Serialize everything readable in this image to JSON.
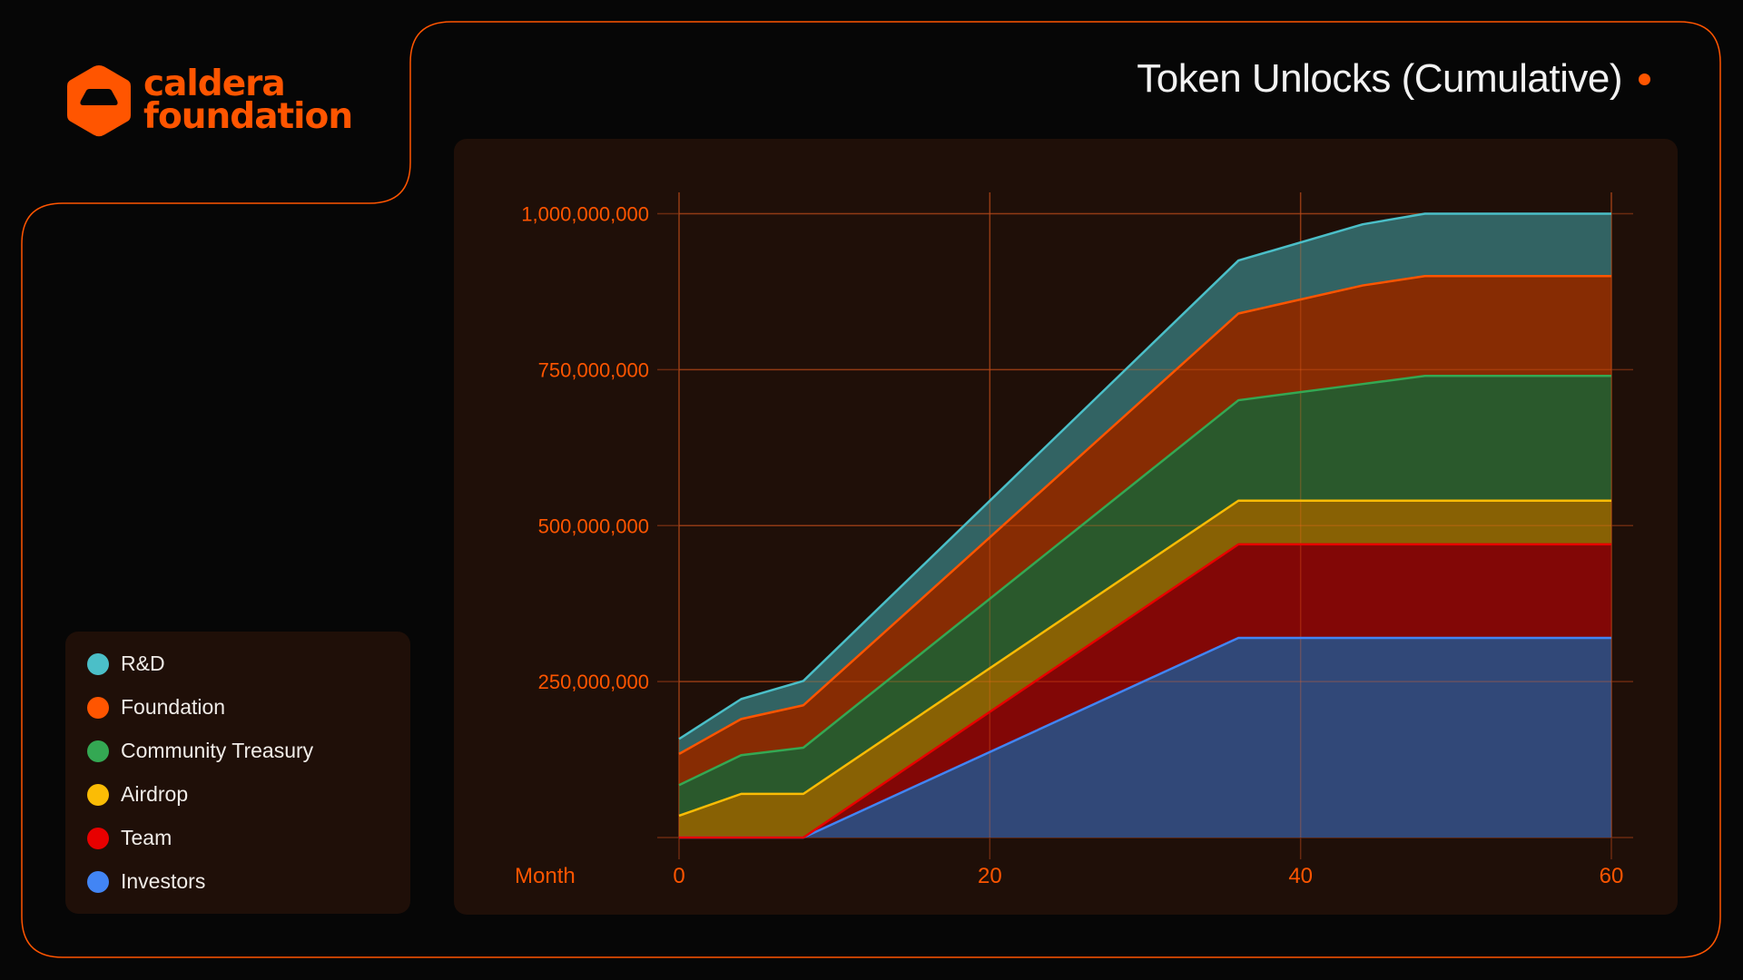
{
  "brand": {
    "line1": "caldera",
    "line2": "foundation",
    "logo_icon": "caldera-hexagon-icon",
    "accent": "#ff5500"
  },
  "title": "Token Unlocks (Cumulative)",
  "legend": [
    {
      "label": "R&D",
      "color": "#4bbfc8"
    },
    {
      "label": "Foundation",
      "color": "#ff5500"
    },
    {
      "label": "Community Treasury",
      "color": "#34a853"
    },
    {
      "label": "Airdrop",
      "color": "#fbbc05"
    },
    {
      "label": "Team",
      "color": "#e80000"
    },
    {
      "label": "Investors",
      "color": "#4285f4"
    }
  ],
  "chart_data": {
    "type": "area",
    "stacked": true,
    "title": "Token Unlocks (Cumulative)",
    "xlabel": "Month",
    "ylabel": "",
    "x": [
      0,
      4,
      8,
      36,
      44,
      48,
      60
    ],
    "xlim": [
      0,
      60
    ],
    "ylim": [
      0,
      1000000000
    ],
    "x_ticks": [
      "0",
      "20",
      "40",
      "60"
    ],
    "x_tick_values": [
      0,
      20,
      40,
      60
    ],
    "y_ticks": [
      "250,000,000",
      "500,000,000",
      "750,000,000",
      "1,000,000,000"
    ],
    "y_tick_values": [
      250000000,
      500000000,
      750000000,
      1000000000
    ],
    "grid": true,
    "legend_position": "left",
    "series": [
      {
        "name": "Investors",
        "color": "#4285f4",
        "fill": "#324a7c",
        "values": [
          0,
          0,
          0,
          320000000,
          320000000,
          320000000,
          320000000
        ]
      },
      {
        "name": "Team",
        "color": "#e80000",
        "fill": "#850706",
        "values": [
          0,
          0,
          0,
          150000000,
          150000000,
          150000000,
          150000000
        ]
      },
      {
        "name": "Airdrop",
        "color": "#fbbc05",
        "fill": "#8b6404",
        "values": [
          35000000,
          70000000,
          70000000,
          70000000,
          70000000,
          70000000,
          70000000
        ]
      },
      {
        "name": "Community Treasury",
        "color": "#34a853",
        "fill": "#2a5c2d",
        "values": [
          49000000,
          62000000,
          74000000,
          161000000,
          187000000,
          200000000,
          200000000
        ]
      },
      {
        "name": "Foundation",
        "color": "#ff5500",
        "fill": "#8a2d03",
        "values": [
          50000000,
          58000000,
          68000000,
          139000000,
          158000000,
          160000000,
          160000000
        ]
      },
      {
        "name": "R&D",
        "color": "#4bbfc8",
        "fill": "#336666",
        "values": [
          24000000,
          32000000,
          39000000,
          85000000,
          98000000,
          100000000,
          100000000
        ]
      }
    ]
  }
}
